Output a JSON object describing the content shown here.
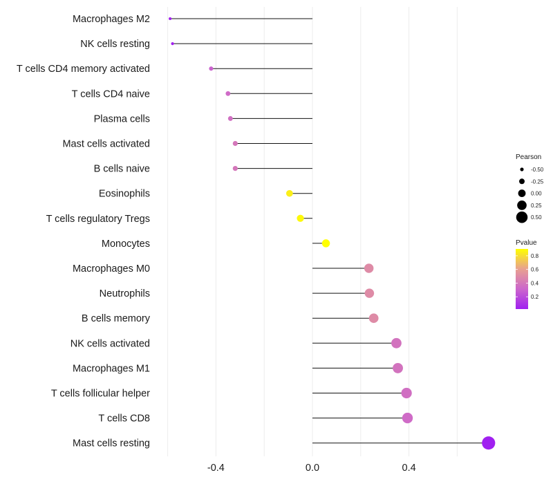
{
  "chart_data": {
    "type": "lollipop",
    "title": "",
    "xlabel": "",
    "ylabel": "",
    "xlim": [
      -0.605,
      0.745
    ],
    "xticks": [
      -0.4,
      0.0,
      0.4
    ],
    "xtick_labels": [
      "-0.4",
      "0.0",
      "0.4"
    ],
    "grid": true,
    "legend_position": "right",
    "categories": [
      "Macrophages M2",
      "NK cells resting",
      "T cells CD4 memory activated",
      "T cells CD4 naive",
      "Plasma cells",
      "Mast cells activated",
      "B cells naive",
      "Eosinophils",
      "T cells regulatory  Tregs ",
      "Monocytes",
      "Macrophages M0",
      "Neutrophils",
      "B cells memory",
      "NK cells activated",
      "Macrophages M1",
      "T cells follicular helper",
      "T cells CD8",
      "Mast cells resting"
    ],
    "pearson": [
      -0.59,
      -0.58,
      -0.42,
      -0.35,
      -0.34,
      -0.32,
      -0.32,
      -0.095,
      -0.05,
      0.056,
      0.234,
      0.236,
      0.254,
      0.348,
      0.354,
      0.39,
      0.394,
      0.73
    ],
    "pvalue": [
      0.03,
      0.03,
      0.3,
      0.34,
      0.36,
      0.4,
      0.4,
      0.85,
      0.88,
      0.9,
      0.5,
      0.5,
      0.5,
      0.38,
      0.38,
      0.36,
      0.34,
      0.02
    ],
    "size_legend": {
      "title": "Pearson",
      "values": [
        -0.5,
        -0.25,
        0.0,
        0.25,
        0.5
      ],
      "labels": [
        "-0.50",
        "-0.25",
        "0.00",
        "0.25",
        "0.50"
      ]
    },
    "color_legend": {
      "title": "Pvalue",
      "range": [
        0.02,
        0.9
      ],
      "ticks": [
        0.8,
        0.6,
        0.4,
        0.2
      ],
      "labels": [
        "0.8",
        "0.6",
        "0.4",
        "0.2"
      ],
      "colors": [
        "#a020f0",
        "#cc66cc",
        "#e8a090",
        "#ffff00"
      ]
    }
  }
}
